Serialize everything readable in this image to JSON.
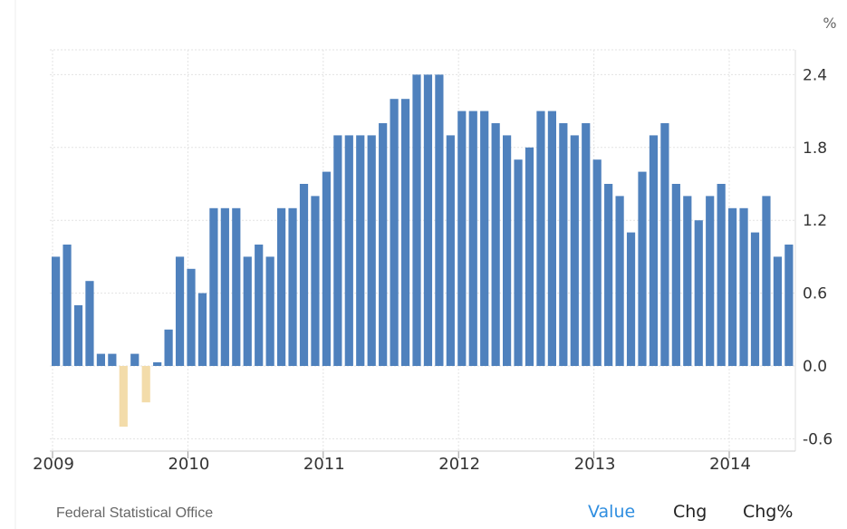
{
  "chart_data": {
    "type": "bar",
    "unit": "%",
    "x_ticks": [
      "2009",
      "2010",
      "2011",
      "2012",
      "2013",
      "2014"
    ],
    "y_ticks": [
      "2.4",
      "1.8",
      "1.2",
      "0.6",
      "0.0",
      "-0.6"
    ],
    "ylim": [
      -0.7,
      2.6
    ],
    "grid": true,
    "positive_color": "#4f81bd",
    "negative_color": "#f3dcaa",
    "x": [
      "2009-01",
      "2009-02",
      "2009-03",
      "2009-04",
      "2009-05",
      "2009-06",
      "2009-07",
      "2009-08",
      "2009-09",
      "2009-10",
      "2009-11",
      "2009-12",
      "2010-01",
      "2010-02",
      "2010-03",
      "2010-04",
      "2010-05",
      "2010-06",
      "2010-07",
      "2010-08",
      "2010-09",
      "2010-10",
      "2010-11",
      "2010-12",
      "2011-01",
      "2011-02",
      "2011-03",
      "2011-04",
      "2011-05",
      "2011-06",
      "2011-07",
      "2011-08",
      "2011-09",
      "2011-10",
      "2011-11",
      "2011-12",
      "2012-01",
      "2012-02",
      "2012-03",
      "2012-04",
      "2012-05",
      "2012-06",
      "2012-07",
      "2012-08",
      "2012-09",
      "2012-10",
      "2012-11",
      "2012-12",
      "2013-01",
      "2013-02",
      "2013-03",
      "2013-04",
      "2013-05",
      "2013-06",
      "2013-07",
      "2013-08",
      "2013-09",
      "2013-10",
      "2013-11",
      "2013-12",
      "2014-01",
      "2014-02",
      "2014-03",
      "2014-04",
      "2014-05",
      "2014-06"
    ],
    "values": [
      0.9,
      1.0,
      0.5,
      0.7,
      0.1,
      0.1,
      -0.5,
      0.1,
      -0.3,
      0.03,
      0.3,
      0.9,
      0.8,
      0.6,
      1.3,
      1.3,
      1.3,
      0.9,
      1.0,
      0.9,
      1.3,
      1.3,
      1.5,
      1.4,
      1.6,
      1.9,
      1.9,
      1.9,
      1.9,
      2.0,
      2.2,
      2.2,
      2.4,
      2.4,
      2.4,
      1.9,
      2.1,
      2.1,
      2.1,
      2.0,
      1.9,
      1.7,
      1.8,
      2.1,
      2.1,
      2.0,
      1.9,
      2.0,
      1.7,
      1.5,
      1.4,
      1.1,
      1.6,
      1.9,
      2.0,
      1.5,
      1.4,
      1.2,
      1.4,
      1.5,
      1.3,
      1.3,
      1.1,
      1.4,
      0.9,
      1.0
    ]
  },
  "source": "Federal Statistical Office",
  "tabs": {
    "value": "Value",
    "chg": "Chg",
    "chg_pct": "Chg%"
  }
}
